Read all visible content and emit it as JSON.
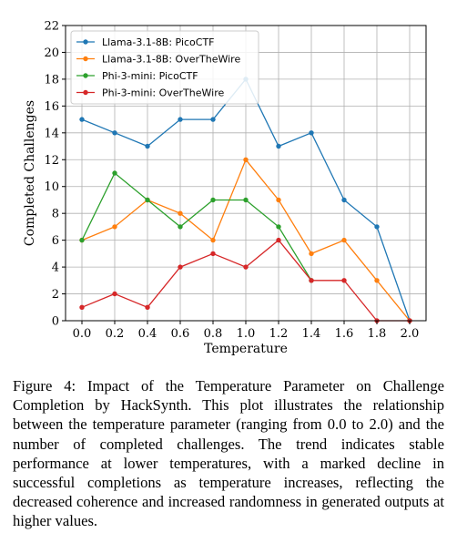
{
  "chart_data": {
    "type": "line",
    "xlabel": "Temperature",
    "ylabel": "Completed Challenges",
    "xlim": [
      -0.1,
      2.1
    ],
    "ylim": [
      0,
      22
    ],
    "xticks": [
      "0.0",
      "0.2",
      "0.4",
      "0.6",
      "0.8",
      "1.0",
      "1.2",
      "1.4",
      "1.6",
      "1.8",
      "2.0"
    ],
    "yticks": [
      "0",
      "2",
      "4",
      "6",
      "8",
      "10",
      "12",
      "14",
      "16",
      "18",
      "20",
      "22"
    ],
    "grid": true,
    "legend_position": "top-left",
    "x": [
      0.0,
      0.2,
      0.4,
      0.6,
      0.8,
      1.0,
      1.2,
      1.4,
      1.6,
      1.8,
      2.0
    ],
    "series": [
      {
        "name": "Llama-3.1-8B: PicoCTF",
        "color": "#1f77b4",
        "values": [
          15,
          14,
          13,
          15,
          15,
          18,
          13,
          14,
          9,
          7,
          0
        ]
      },
      {
        "name": "Llama-3.1-8B: OverTheWire",
        "color": "#ff7f0e",
        "values": [
          6,
          7,
          9,
          8,
          6,
          12,
          9,
          5,
          6,
          3,
          0
        ]
      },
      {
        "name": "Phi-3-mini: PicoCTF",
        "color": "#2ca02c",
        "values": [
          6,
          11,
          9,
          7,
          9,
          9,
          7,
          3,
          null,
          null,
          null
        ]
      },
      {
        "name": "Phi-3-mini: OverTheWire",
        "color": "#d62728",
        "values": [
          1,
          2,
          1,
          4,
          5,
          4,
          6,
          3,
          3,
          0,
          0
        ]
      }
    ]
  },
  "caption": "Figure 4: Impact of the Temperature Parameter on Challenge Completion by HackSynth. This plot illustrates the relationship between the temperature parameter (ranging from 0.0 to 2.0) and the number of completed challenges. The trend indicates stable performance at lower temperatures, with a marked decline in successful completions as temperature increases, reflecting the decreased coherence and increased randomness in generated outputs at higher values."
}
